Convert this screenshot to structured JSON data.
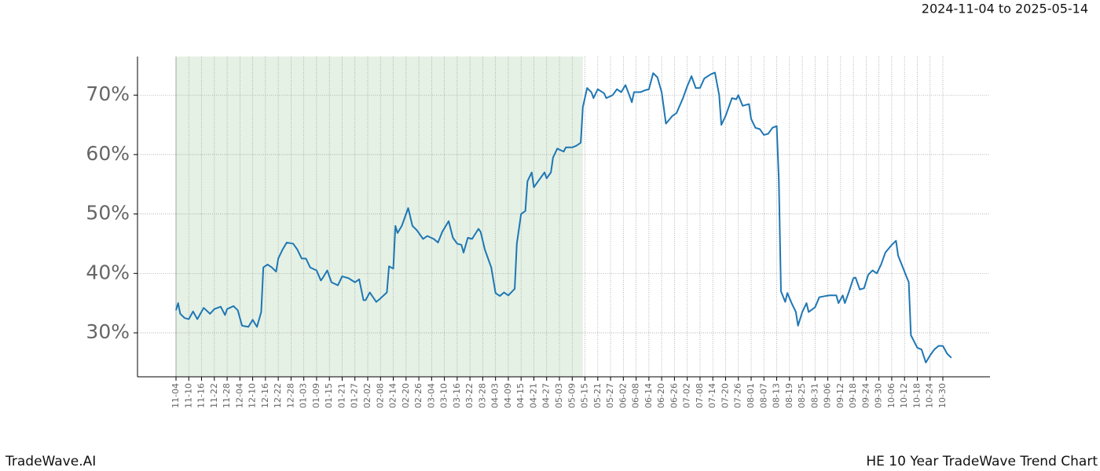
{
  "brand": "TradeWave.AI",
  "chart_data": {
    "type": "line",
    "title": "HE 10 Year TradeWave Trend Chart",
    "subtitle": "2024-11-04 to 2025-05-14",
    "color": "#1f77b4",
    "shade_color": "#e5f1e5",
    "shaded_range": [
      "11-04",
      "05-14"
    ],
    "grid": true,
    "ylim": [
      22.6,
      76.5
    ],
    "yticks": [
      {
        "value": 30,
        "label": "30%"
      },
      {
        "value": 40,
        "label": "40%"
      },
      {
        "value": 50,
        "label": "50%"
      },
      {
        "value": 60,
        "label": "60%"
      },
      {
        "value": 70,
        "label": "70%"
      }
    ],
    "xticks": [
      "11-04",
      "11-10",
      "11-16",
      "11-22",
      "11-28",
      "12-04",
      "12-10",
      "12-16",
      "12-22",
      "12-28",
      "01-03",
      "01-09",
      "01-15",
      "01-21",
      "01-27",
      "02-02",
      "02-08",
      "02-14",
      "02-20",
      "02-26",
      "03-04",
      "03-10",
      "03-16",
      "03-22",
      "03-28",
      "04-03",
      "04-09",
      "04-15",
      "04-21",
      "04-27",
      "05-03",
      "05-09",
      "05-15",
      "05-21",
      "05-27",
      "06-02",
      "06-08",
      "06-14",
      "06-20",
      "06-26",
      "07-02",
      "07-08",
      "07-14",
      "07-20",
      "07-26",
      "08-01",
      "08-07",
      "08-13",
      "08-19",
      "08-25",
      "08-31",
      "09-06",
      "09-12",
      "09-18",
      "09-24",
      "09-30",
      "10-06",
      "10-12",
      "10-18",
      "10-24",
      "10-30"
    ],
    "x": [
      "11-04",
      "11-05",
      "11-06",
      "11-08",
      "11-10",
      "11-12",
      "11-14",
      "11-17",
      "11-20",
      "11-22",
      "11-25",
      "11-27",
      "11-28",
      "12-01",
      "12-03",
      "12-05",
      "12-08",
      "12-10",
      "12-12",
      "12-14",
      "12-15",
      "12-17",
      "12-19",
      "12-21",
      "12-22",
      "12-24",
      "12-26",
      "12-29",
      "12-31",
      "01-02",
      "01-04",
      "01-06",
      "01-09",
      "01-11",
      "01-12",
      "01-14",
      "01-16",
      "01-19",
      "01-21",
      "01-24",
      "01-27",
      "01-29",
      "01-31",
      "02-01",
      "02-03",
      "02-06",
      "02-08",
      "02-11",
      "02-12",
      "02-14",
      "02-15",
      "02-16",
      "02-18",
      "02-21",
      "02-23",
      "02-25",
      "02-28",
      "03-02",
      "03-05",
      "03-07",
      "03-09",
      "03-12",
      "03-14",
      "03-16",
      "03-18",
      "03-19",
      "03-21",
      "03-23",
      "03-26",
      "03-27",
      "03-29",
      "04-01",
      "04-03",
      "04-05",
      "04-07",
      "04-09",
      "04-12",
      "04-13",
      "04-15",
      "04-17",
      "04-18",
      "04-20",
      "04-21",
      "04-23",
      "04-26",
      "04-27",
      "04-29",
      "04-30",
      "05-02",
      "05-05",
      "05-06",
      "05-09",
      "05-11",
      "05-13",
      "05-14",
      "05-16",
      "05-18",
      "05-19",
      "05-21",
      "05-24",
      "05-25",
      "05-28",
      "05-30",
      "06-01",
      "06-03",
      "06-05",
      "06-06",
      "06-07",
      "06-10",
      "06-12",
      "06-14",
      "06-16",
      "06-18",
      "06-20",
      "06-22",
      "06-25",
      "06-27",
      "06-30",
      "07-02",
      "07-04",
      "07-06",
      "07-08",
      "07-10",
      "07-13",
      "07-15",
      "07-17",
      "07-18",
      "07-20",
      "07-23",
      "07-25",
      "07-26",
      "07-28",
      "07-31",
      "08-01",
      "08-03",
      "08-05",
      "08-07",
      "08-09",
      "08-11",
      "08-13",
      "08-14",
      "08-15",
      "08-17",
      "08-18",
      "08-20",
      "08-22",
      "08-23",
      "08-25",
      "08-27",
      "08-28",
      "08-31",
      "09-02",
      "09-05",
      "09-07",
      "09-10",
      "09-11",
      "09-13",
      "09-14",
      "09-16",
      "09-18",
      "09-19",
      "09-21",
      "09-23",
      "09-25",
      "09-27",
      "09-29",
      "10-01",
      "10-03",
      "10-06",
      "10-08",
      "10-09",
      "10-14",
      "10-15",
      "10-18",
      "10-20",
      "10-22",
      "10-24",
      "10-26",
      "10-28",
      "10-30",
      "11-01",
      "11-03"
    ],
    "values": [
      33.8,
      35,
      33.2,
      32.5,
      32.3,
      33.6,
      32.3,
      34.2,
      33.2,
      34,
      34.4,
      33,
      34,
      34.5,
      33.8,
      31.2,
      31,
      32.2,
      31,
      33.5,
      41,
      41.5,
      41,
      40.3,
      42.5,
      44,
      45.2,
      45,
      44,
      42.5,
      42.5,
      41,
      40.5,
      38.8,
      39.3,
      40.5,
      38.5,
      38,
      39.5,
      39.2,
      38.5,
      39,
      35.5,
      35.5,
      36.8,
      35.2,
      35.8,
      36.8,
      41.2,
      40.8,
      48,
      46.8,
      48,
      51,
      48,
      47.3,
      45.8,
      46.3,
      45.8,
      45.2,
      47,
      48.8,
      46,
      45,
      44.8,
      43.5,
      46,
      45.8,
      47.5,
      47,
      44,
      41,
      36.7,
      36.2,
      36.8,
      36.3,
      37.4,
      45,
      50,
      50.5,
      55.5,
      57,
      54.5,
      55.5,
      57,
      56,
      57,
      59.5,
      61,
      60.5,
      61.2,
      61.2,
      61.5,
      62,
      68,
      71.2,
      70.5,
      69.5,
      71,
      70.3,
      69.5,
      70,
      71,
      70.5,
      71.7,
      69.8,
      68.8,
      70.5,
      70.5,
      70.8,
      71,
      73.7,
      73,
      70.5,
      65.2,
      66.5,
      67,
      69.5,
      71.5,
      73.2,
      71.2,
      71.2,
      72.8,
      73.5,
      73.8,
      70,
      65,
      66.5,
      69.5,
      69.3,
      70,
      68.2,
      68.5,
      66,
      64.5,
      64.3,
      63.3,
      63.5,
      64.5,
      64.8,
      55.8,
      37,
      35.2,
      36.7,
      35,
      33.5,
      31.2,
      33.5,
      35,
      33.5,
      34.3,
      36,
      36.2,
      36.3,
      36.3,
      35,
      36.3,
      35,
      37,
      39.2,
      39.3,
      37.3,
      37.5,
      39.8,
      40.5,
      40,
      41.5,
      43.5,
      44.8,
      45.5,
      43,
      38.5,
      29.6,
      27.5,
      27.2,
      25,
      26.2,
      27.2,
      27.8,
      27.8,
      26.5,
      25.8
    ]
  }
}
